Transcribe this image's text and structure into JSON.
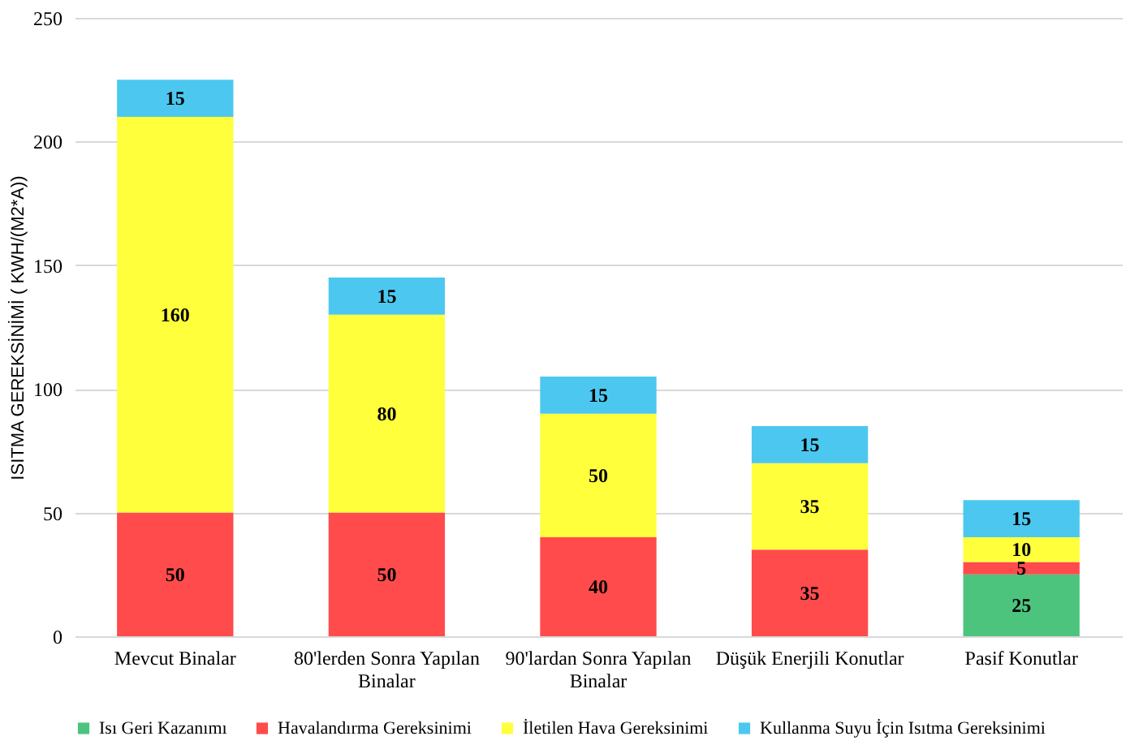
{
  "chart_data": {
    "type": "bar",
    "stacked": true,
    "ylabel": "ISITMA GEREKSİNİMİ ( KWH/(M2*A))",
    "categories": [
      "Mevcut Binalar",
      "80'lerden Sonra Yapılan Binalar",
      "90'lardan Sonra Yapılan Binalar",
      "Düşük Enerjili Konutlar",
      "Pasif Konutlar"
    ],
    "series": [
      {
        "name": "Isı Geri Kazanımı",
        "color": "#4cc47e",
        "values": [
          null,
          null,
          null,
          null,
          25
        ]
      },
      {
        "name": "Havalandırma Gereksinimi",
        "color": "#ff4b4b",
        "values": [
          50,
          50,
          40,
          35,
          5
        ]
      },
      {
        "name": "İletilen Hava Gereksinimi",
        "color": "#ffff3c",
        "values": [
          160,
          80,
          50,
          35,
          10
        ]
      },
      {
        "name": "Kullanma Suyu İçin Isıtma Gereksinimi",
        "color": "#4cc8f0",
        "values": [
          15,
          15,
          15,
          15,
          15
        ]
      }
    ],
    "ylim": [
      0,
      250
    ],
    "yticks": [
      0,
      50,
      100,
      150,
      200,
      250
    ],
    "grid": "y",
    "legend": "bottom",
    "data_labels": true
  }
}
